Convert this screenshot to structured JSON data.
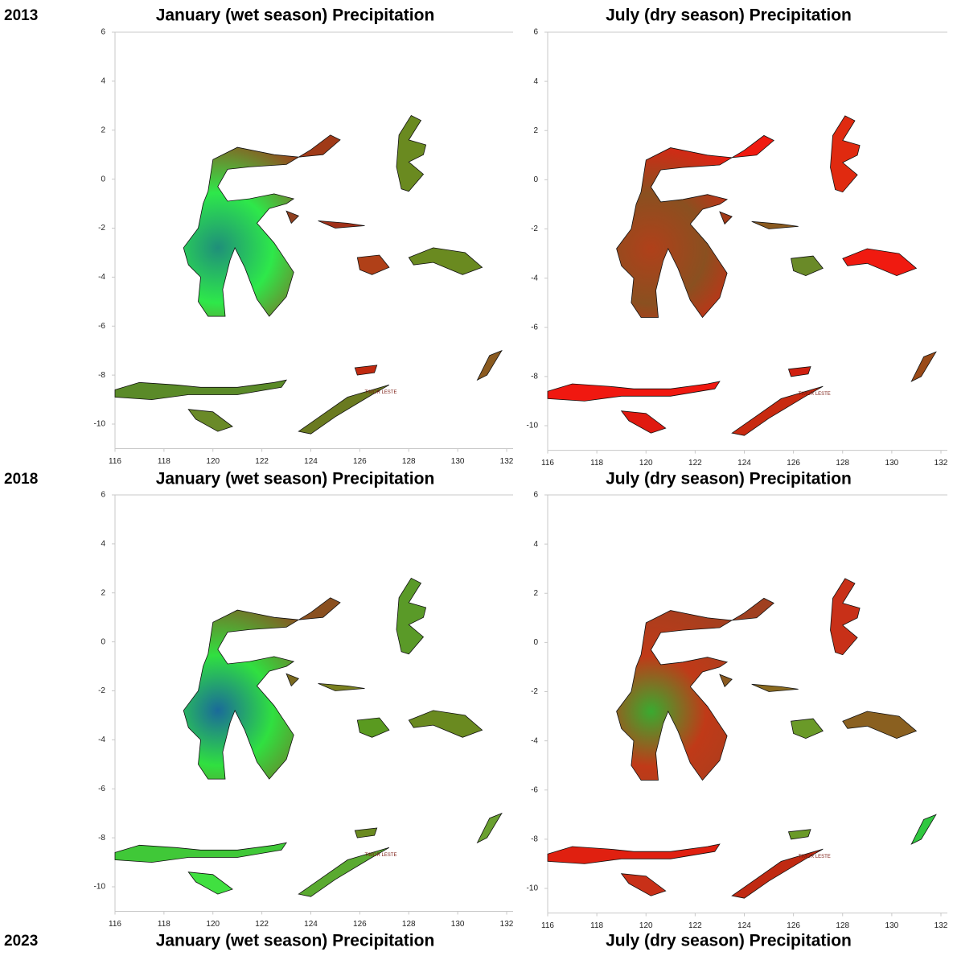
{
  "figure": {
    "rows": [
      {
        "year": "2013",
        "titles": [
          "January (wet season) Precipitation",
          "July (dry season) Precipitation"
        ]
      },
      {
        "year": "2018",
        "titles": [
          "January (wet season) Precipitation",
          "July (dry season) Precipitation"
        ]
      },
      {
        "year": "2023",
        "titles": [
          "January (wet season) Precipitation",
          "July (dry season) Precipitation"
        ]
      }
    ],
    "map": {
      "xlim": [
        116,
        132
      ],
      "ylim": [
        -11,
        6
      ],
      "xticks": [
        116,
        118,
        120,
        122,
        124,
        126,
        128,
        130,
        132
      ],
      "yticks": [
        6,
        4,
        2,
        0,
        -2,
        -4,
        -6,
        -8,
        -10
      ],
      "annotation": "TIMOR LESTE"
    }
  }
}
